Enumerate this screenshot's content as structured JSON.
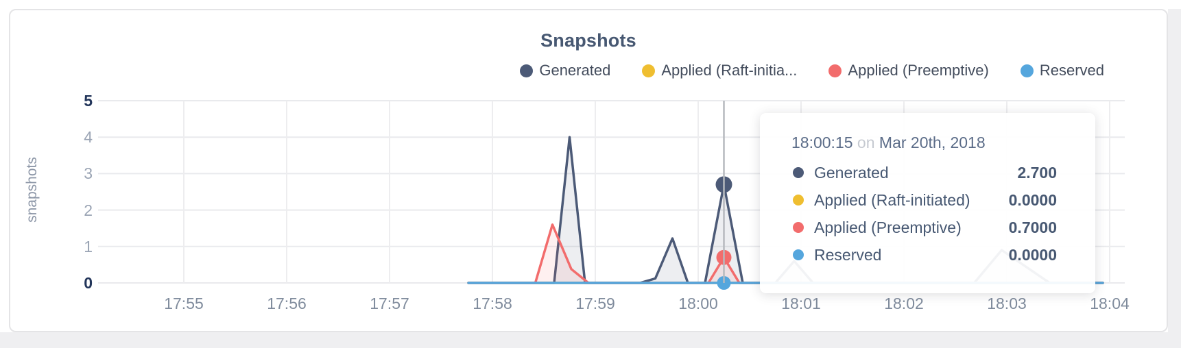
{
  "card": {
    "title": "Snapshots"
  },
  "legend": {
    "items": [
      {
        "label": "Generated",
        "color": "#4c5a77"
      },
      {
        "label": "Applied (Raft-initia...",
        "color": "#efbe30"
      },
      {
        "label": "Applied (Preemptive)",
        "color": "#f26c6c"
      },
      {
        "label": "Reserved",
        "color": "#55a6dd"
      }
    ]
  },
  "y_axis": {
    "label": "snapshots",
    "ticks": [
      {
        "value": "5",
        "bold": true
      },
      {
        "value": "4",
        "bold": false
      },
      {
        "value": "3",
        "bold": false
      },
      {
        "value": "2",
        "bold": false
      },
      {
        "value": "1",
        "bold": false
      },
      {
        "value": "0",
        "bold": true
      }
    ]
  },
  "x_axis": {
    "ticks": [
      "17:55",
      "17:56",
      "17:57",
      "17:58",
      "17:59",
      "18:00",
      "18:01",
      "18:02",
      "18:03",
      "18:04"
    ]
  },
  "chart_data": {
    "type": "area",
    "title": "Snapshots",
    "ylabel": "snapshots",
    "ylim": [
      0,
      5
    ],
    "x_unit": "seconds since 17:55:00",
    "x_tick_labels": [
      "17:55",
      "17:56",
      "17:57",
      "17:58",
      "17:59",
      "18:00",
      "18:01",
      "18:02",
      "18:03",
      "18:04"
    ],
    "grid": true,
    "legend_position": "top-right",
    "series": [
      {
        "name": "Generated",
        "color": "#4c5a77",
        "fill": "rgba(76,90,119,0.10)",
        "points": [
          [
            166,
            0
          ],
          [
            216,
            0
          ],
          [
            225,
            4
          ],
          [
            234,
            0
          ],
          [
            266,
            0
          ],
          [
            275,
            0.12
          ],
          [
            285,
            1.22
          ],
          [
            294,
            0
          ],
          [
            304,
            0
          ],
          [
            315,
            2.7
          ],
          [
            326,
            0
          ],
          [
            345,
            0
          ],
          [
            356,
            0.6
          ],
          [
            367,
            0
          ],
          [
            461,
            0
          ],
          [
            477,
            0.9
          ],
          [
            505,
            0
          ],
          [
            536,
            0
          ]
        ]
      },
      {
        "name": "Applied (Raft-initiated)",
        "color": "#efbe30",
        "fill": "none",
        "points": [
          [
            166,
            0
          ],
          [
            536,
            0
          ]
        ]
      },
      {
        "name": "Applied (Preemptive)",
        "color": "#f26c6c",
        "fill": "rgba(242,108,108,0.10)",
        "points": [
          [
            166,
            0
          ],
          [
            205,
            0
          ],
          [
            215,
            1.6
          ],
          [
            226,
            0.38
          ],
          [
            236,
            0
          ],
          [
            306,
            0
          ],
          [
            315,
            0.7
          ],
          [
            324,
            0
          ],
          [
            536,
            0
          ]
        ]
      },
      {
        "name": "Reserved",
        "color": "#55a6dd",
        "fill": "none",
        "points": [
          [
            166,
            0
          ],
          [
            536,
            0
          ]
        ]
      }
    ],
    "highlight": {
      "t": 315,
      "time_label": "18:00:15",
      "dots": [
        {
          "series": "Generated",
          "value": 2.7,
          "r": 12,
          "color": "#4c5a77"
        },
        {
          "series": "Applied (Preemptive)",
          "value": 0.7,
          "r": 11,
          "color": "#f26c6c"
        },
        {
          "series": "Reserved",
          "value": 0,
          "r": 10,
          "color": "#55a6dd"
        }
      ]
    }
  },
  "tooltip": {
    "time": "18:00:15",
    "conjunction": "on",
    "date": "Mar 20th, 2018",
    "rows": [
      {
        "label": "Generated",
        "value": "2.700",
        "color": "#4c5a77"
      },
      {
        "label": "Applied (Raft-initiated)",
        "value": "0.0000",
        "color": "#efbe30"
      },
      {
        "label": "Applied (Preemptive)",
        "value": "0.7000",
        "color": "#f26c6c"
      },
      {
        "label": "Reserved",
        "value": "0.0000",
        "color": "#55a6dd"
      }
    ]
  }
}
